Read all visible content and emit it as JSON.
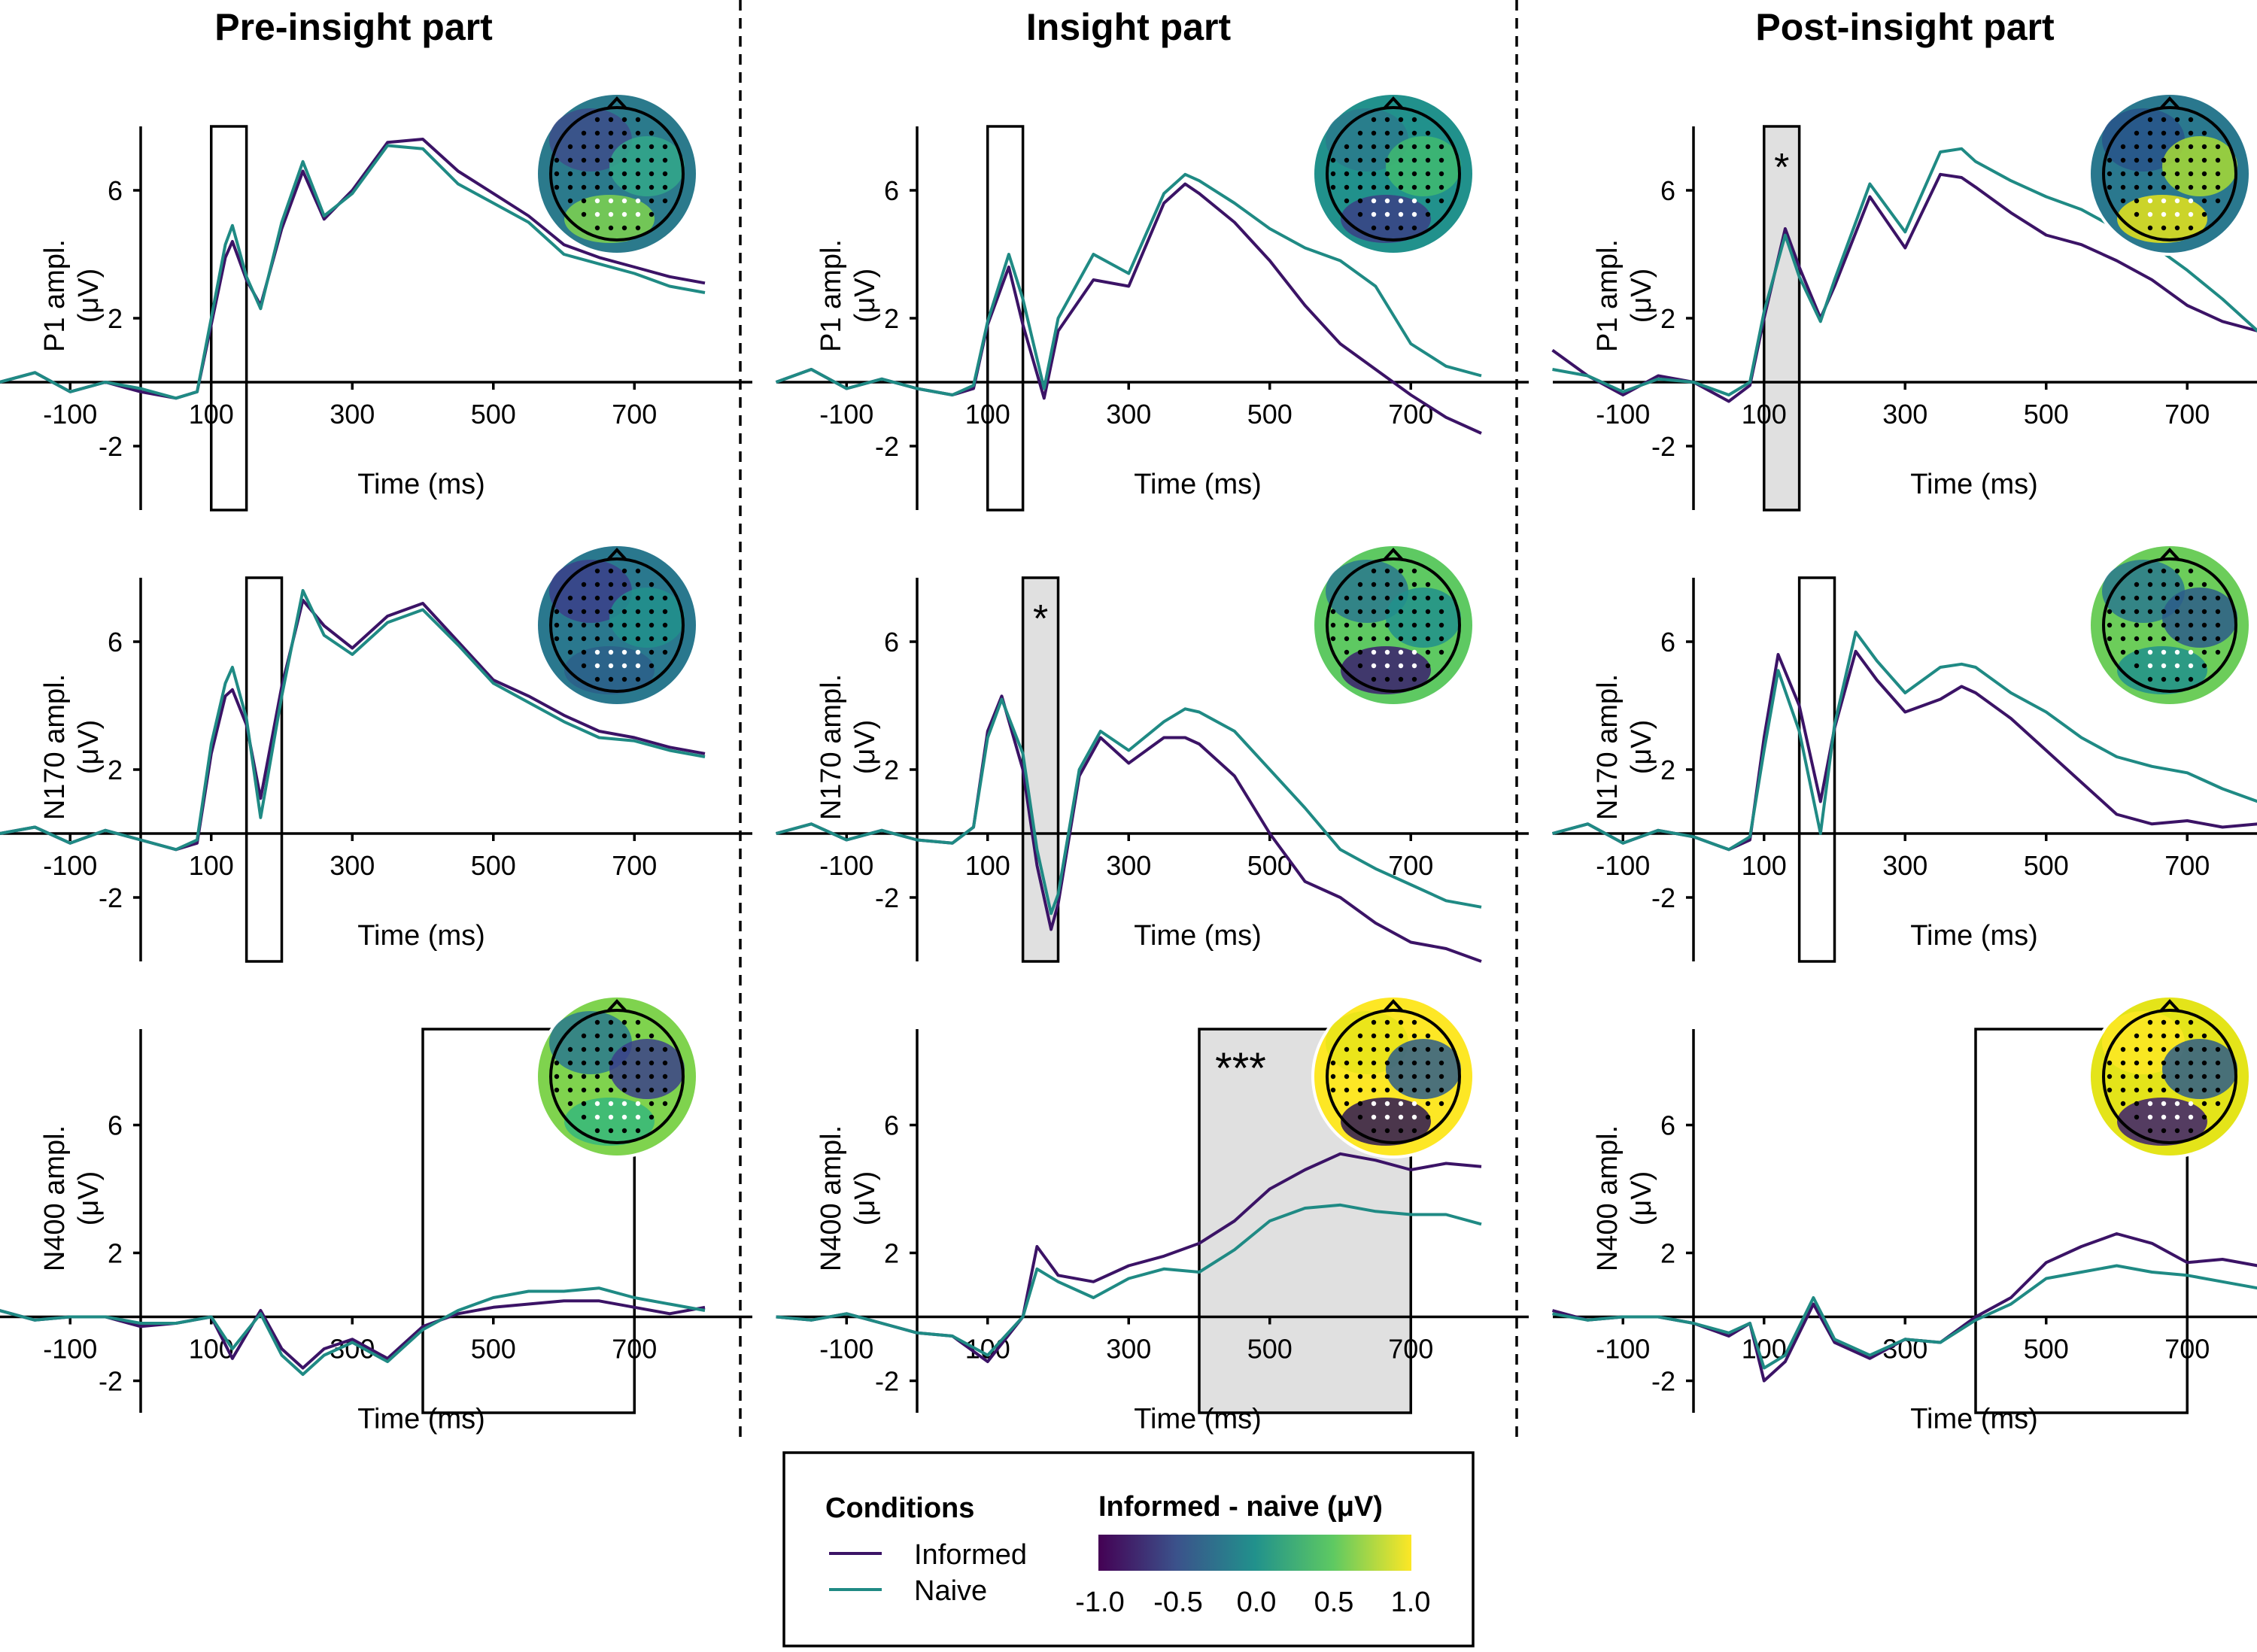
{
  "columns": [
    "Pre-insight part",
    "Insight part",
    "Post-insight part"
  ],
  "row_ylabels": [
    [
      "P1 ampl.",
      "(μV)"
    ],
    [
      "N170 ampl.",
      "(μV)"
    ],
    [
      "N400 ampl.",
      "(μV)"
    ]
  ],
  "x_axis_label": "Time (ms)",
  "x_ticks": [
    -100,
    100,
    300,
    500,
    700
  ],
  "y_ticks": [
    -2,
    2,
    6
  ],
  "colors": {
    "informed": "#3b1366",
    "naive": "#1f8a84",
    "shade": "#e0e0e0"
  },
  "legend": {
    "conditions_title": "Conditions",
    "conditions": [
      "Informed",
      "Naive"
    ],
    "colorbar_title": "Informed - naive (μV)",
    "colorbar_ticks": [
      "-1.0",
      "-0.5",
      "0.0",
      "0.5",
      "1.0"
    ]
  },
  "chart_data": [
    {
      "type": "line",
      "panel": "Pre-insight part / P1",
      "xlim": [
        -200,
        800
      ],
      "ylim": [
        -4,
        8
      ],
      "window": [
        100,
        150
      ],
      "shaded": false,
      "significance": "",
      "x": [
        -200,
        -150,
        -100,
        -50,
        0,
        50,
        80,
        100,
        120,
        130,
        150,
        170,
        200,
        230,
        260,
        300,
        350,
        400,
        450,
        500,
        550,
        600,
        650,
        700,
        750,
        800
      ],
      "series": [
        {
          "name": "Informed",
          "values": [
            0,
            0.3,
            -0.3,
            0,
            -0.3,
            -0.5,
            -0.3,
            1.8,
            3.9,
            4.4,
            3.2,
            2.4,
            4.8,
            6.6,
            5.1,
            6.0,
            7.5,
            7.6,
            6.6,
            5.9,
            5.2,
            4.3,
            3.9,
            3.6,
            3.3,
            3.1
          ]
        },
        {
          "name": "Naive",
          "values": [
            0,
            0.3,
            -0.3,
            0,
            -0.2,
            -0.5,
            -0.3,
            2.0,
            4.3,
            4.9,
            3.3,
            2.3,
            5.0,
            6.9,
            5.2,
            5.9,
            7.4,
            7.3,
            6.2,
            5.6,
            5.0,
            4.0,
            3.7,
            3.4,
            3.0,
            2.8
          ]
        }
      ],
      "topography": {
        "colors": [
          "#3d4e8a",
          "#2b7a8c",
          "#33a88a",
          "#7fd34e"
        ]
      }
    },
    {
      "type": "line",
      "panel": "Insight part / P1",
      "xlim": [
        -200,
        800
      ],
      "ylim": [
        -4,
        8
      ],
      "window": [
        100,
        150
      ],
      "shaded": false,
      "significance": "",
      "x": [
        -200,
        -150,
        -100,
        -50,
        0,
        50,
        80,
        100,
        130,
        150,
        180,
        200,
        250,
        300,
        350,
        380,
        400,
        450,
        500,
        550,
        600,
        650,
        700,
        750,
        800
      ],
      "series": [
        {
          "name": "Informed",
          "values": [
            0,
            0.4,
            -0.2,
            0.1,
            -0.2,
            -0.4,
            -0.2,
            1.8,
            3.6,
            1.8,
            -0.5,
            1.6,
            3.2,
            3.0,
            5.6,
            6.2,
            5.9,
            5.0,
            3.8,
            2.4,
            1.2,
            0.4,
            -0.4,
            -1.1,
            -1.6
          ]
        },
        {
          "name": "Naive",
          "values": [
            0,
            0.4,
            -0.2,
            0.1,
            -0.2,
            -0.4,
            -0.1,
            1.9,
            4.0,
            2.6,
            -0.2,
            2.0,
            4.0,
            3.4,
            5.9,
            6.5,
            6.3,
            5.6,
            4.8,
            4.2,
            3.8,
            3.0,
            1.2,
            0.5,
            0.2
          ]
        }
      ],
      "topography": {
        "colors": [
          "#2a7a8c",
          "#21918c",
          "#3fba70",
          "#3a3f85"
        ]
      }
    },
    {
      "type": "line",
      "panel": "Post-insight part / P1",
      "xlim": [
        -200,
        800
      ],
      "ylim": [
        -4,
        8
      ],
      "window": [
        100,
        150
      ],
      "shaded": true,
      "significance": "*",
      "x": [
        -200,
        -150,
        -100,
        -50,
        0,
        50,
        80,
        100,
        130,
        150,
        180,
        200,
        250,
        300,
        350,
        380,
        400,
        450,
        500,
        550,
        600,
        650,
        700,
        750,
        800
      ],
      "series": [
        {
          "name": "Informed",
          "values": [
            1.0,
            0.2,
            -0.4,
            0.2,
            0.0,
            -0.6,
            -0.1,
            2.0,
            4.8,
            3.6,
            2.0,
            3.0,
            5.8,
            4.2,
            6.5,
            6.4,
            6.1,
            5.3,
            4.6,
            4.3,
            3.8,
            3.2,
            2.4,
            1.9,
            1.6
          ]
        },
        {
          "name": "Naive",
          "values": [
            0.4,
            0.2,
            -0.3,
            0.1,
            0.0,
            -0.4,
            0.0,
            2.2,
            4.6,
            3.3,
            1.9,
            3.2,
            6.2,
            4.7,
            7.2,
            7.3,
            6.9,
            6.3,
            5.8,
            5.4,
            4.8,
            4.3,
            3.5,
            2.6,
            1.6
          ]
        }
      ],
      "topography": {
        "colors": [
          "#28548a",
          "#2a788e",
          "#a8db34",
          "#e7e419"
        ]
      }
    },
    {
      "type": "line",
      "panel": "Pre-insight part / N170",
      "xlim": [
        -200,
        800
      ],
      "ylim": [
        -4,
        8
      ],
      "window": [
        150,
        200
      ],
      "shaded": false,
      "significance": "",
      "x": [
        -200,
        -150,
        -100,
        -50,
        0,
        50,
        80,
        100,
        120,
        130,
        150,
        170,
        200,
        230,
        260,
        300,
        350,
        400,
        450,
        500,
        550,
        600,
        650,
        700,
        750,
        800
      ],
      "series": [
        {
          "name": "Informed",
          "values": [
            0,
            0.2,
            -0.3,
            0.1,
            -0.2,
            -0.5,
            -0.3,
            2.5,
            4.3,
            4.5,
            3.4,
            1.1,
            4.6,
            7.3,
            6.5,
            5.8,
            6.8,
            7.2,
            6.0,
            4.8,
            4.3,
            3.7,
            3.2,
            3.0,
            2.7,
            2.5
          ]
        },
        {
          "name": "Naive",
          "values": [
            0,
            0.2,
            -0.3,
            0.1,
            -0.2,
            -0.5,
            -0.2,
            2.8,
            4.7,
            5.2,
            3.6,
            0.5,
            4.3,
            7.6,
            6.2,
            5.6,
            6.6,
            7.0,
            5.9,
            4.7,
            4.1,
            3.5,
            3.0,
            2.9,
            2.6,
            2.4
          ]
        }
      ],
      "topography": {
        "colors": [
          "#3b3f8a",
          "#2a788e",
          "#21918c",
          "#2c5f8a"
        ]
      }
    },
    {
      "type": "line",
      "panel": "Insight part / N170",
      "xlim": [
        -200,
        800
      ],
      "ylim": [
        -4,
        8
      ],
      "window": [
        150,
        200
      ],
      "shaded": true,
      "significance": "*",
      "x": [
        -200,
        -150,
        -100,
        -50,
        0,
        50,
        80,
        100,
        120,
        150,
        170,
        190,
        200,
        230,
        260,
        300,
        350,
        380,
        400,
        450,
        500,
        550,
        600,
        650,
        700,
        750,
        800
      ],
      "series": [
        {
          "name": "Informed",
          "values": [
            0,
            0.3,
            -0.2,
            0.1,
            -0.2,
            -0.3,
            0.2,
            3.2,
            4.3,
            2.0,
            -1.0,
            -3.0,
            -2.2,
            1.8,
            3.0,
            2.2,
            3.0,
            3.0,
            2.8,
            1.8,
            0,
            -1.5,
            -2.0,
            -2.8,
            -3.4,
            -3.6,
            -4.0
          ]
        },
        {
          "name": "Naive",
          "values": [
            0,
            0.3,
            -0.2,
            0.1,
            -0.2,
            -0.3,
            0.2,
            3.0,
            4.2,
            2.5,
            -0.5,
            -2.5,
            -1.9,
            2.0,
            3.2,
            2.6,
            3.5,
            3.9,
            3.8,
            3.2,
            2.0,
            0.8,
            -0.5,
            -1.1,
            -1.6,
            -2.1,
            -2.3
          ]
        }
      ],
      "topography": {
        "colors": [
          "#2a788e",
          "#5ec962",
          "#21918c",
          "#3b1f6e"
        ]
      }
    },
    {
      "type": "line",
      "panel": "Post-insight part / N170",
      "xlim": [
        -200,
        800
      ],
      "ylim": [
        -4,
        8
      ],
      "window": [
        150,
        200
      ],
      "shaded": false,
      "significance": "",
      "x": [
        -200,
        -150,
        -100,
        -50,
        0,
        50,
        80,
        100,
        120,
        150,
        180,
        200,
        230,
        260,
        300,
        350,
        380,
        400,
        450,
        500,
        550,
        600,
        650,
        700,
        750,
        800
      ],
      "series": [
        {
          "name": "Informed",
          "values": [
            0,
            0.3,
            -0.3,
            0.1,
            -0.1,
            -0.5,
            -0.2,
            3.0,
            5.6,
            4.0,
            1.0,
            3.3,
            5.7,
            4.8,
            3.8,
            4.2,
            4.6,
            4.4,
            3.6,
            2.6,
            1.6,
            0.6,
            0.3,
            0.4,
            0.2,
            0.3
          ]
        },
        {
          "name": "Naive",
          "values": [
            0,
            0.3,
            -0.3,
            0.1,
            -0.1,
            -0.5,
            -0.1,
            2.6,
            5.1,
            3.2,
            0,
            3.4,
            6.3,
            5.4,
            4.4,
            5.2,
            5.3,
            5.2,
            4.4,
            3.8,
            3.0,
            2.4,
            2.1,
            1.9,
            1.4,
            1.0
          ]
        }
      ],
      "topography": {
        "colors": [
          "#2a788e",
          "#6ccd5a",
          "#2d5c8a",
          "#21918c"
        ]
      }
    },
    {
      "type": "line",
      "panel": "Pre-insight part / N400",
      "xlim": [
        -200,
        800
      ],
      "ylim": [
        -3,
        9
      ],
      "window": [
        400,
        700
      ],
      "shaded": false,
      "significance": "",
      "x": [
        -200,
        -150,
        -100,
        -50,
        0,
        50,
        100,
        130,
        170,
        200,
        230,
        260,
        300,
        350,
        400,
        450,
        500,
        550,
        600,
        650,
        700,
        750,
        800
      ],
      "series": [
        {
          "name": "Informed",
          "values": [
            0.2,
            -0.1,
            0,
            0,
            -0.3,
            -0.2,
            0,
            -1.3,
            0.2,
            -1.0,
            -1.6,
            -1.0,
            -0.7,
            -1.3,
            -0.3,
            0.1,
            0.3,
            0.4,
            0.5,
            0.5,
            0.3,
            0.1,
            0.3
          ]
        },
        {
          "name": "Naive",
          "values": [
            0.2,
            -0.1,
            0,
            0,
            -0.2,
            -0.2,
            0,
            -1.0,
            0.1,
            -1.2,
            -1.8,
            -1.2,
            -0.8,
            -1.4,
            -0.4,
            0.2,
            0.6,
            0.8,
            0.8,
            0.9,
            0.6,
            0.4,
            0.2
          ]
        }
      ],
      "topography": {
        "colors": [
          "#2a788e",
          "#7fd34e",
          "#3b3f8a",
          "#36b77b"
        ]
      }
    },
    {
      "type": "line",
      "panel": "Insight part / N400",
      "xlim": [
        -200,
        800
      ],
      "ylim": [
        -3,
        9
      ],
      "window": [
        400,
        700
      ],
      "shaded": true,
      "significance": "***",
      "x": [
        -200,
        -150,
        -100,
        -50,
        0,
        50,
        100,
        150,
        170,
        200,
        250,
        300,
        350,
        400,
        450,
        500,
        550,
        600,
        650,
        700,
        750,
        800
      ],
      "series": [
        {
          "name": "Informed",
          "values": [
            0,
            -0.1,
            0.1,
            -0.2,
            -0.5,
            -0.6,
            -1.4,
            0,
            2.2,
            1.3,
            1.1,
            1.6,
            1.9,
            2.3,
            3.0,
            4.0,
            4.6,
            5.1,
            4.9,
            4.6,
            4.8,
            4.7
          ]
        },
        {
          "name": "Naive",
          "values": [
            0,
            -0.1,
            0.1,
            -0.2,
            -0.5,
            -0.6,
            -1.2,
            0,
            1.5,
            1.1,
            0.6,
            1.2,
            1.5,
            1.4,
            2.1,
            3.0,
            3.4,
            3.5,
            3.3,
            3.2,
            3.2,
            2.9
          ]
        }
      ],
      "topography": {
        "colors": [
          "#e7e419",
          "#fde725",
          "#2d5c8a",
          "#2b1653"
        ]
      }
    },
    {
      "type": "line",
      "panel": "Post-insight part / N400",
      "xlim": [
        -200,
        800
      ],
      "ylim": [
        -3,
        9
      ],
      "window": [
        400,
        700
      ],
      "shaded": false,
      "significance": "",
      "x": [
        -200,
        -150,
        -100,
        -50,
        0,
        50,
        80,
        100,
        130,
        170,
        200,
        250,
        300,
        350,
        400,
        450,
        500,
        550,
        600,
        650,
        700,
        750,
        800
      ],
      "series": [
        {
          "name": "Informed",
          "values": [
            0.2,
            -0.1,
            0,
            0,
            -0.2,
            -0.6,
            -0.2,
            -2.0,
            -1.4,
            0.4,
            -0.8,
            -1.3,
            -0.7,
            -0.8,
            0,
            0.6,
            1.7,
            2.2,
            2.6,
            2.3,
            1.7,
            1.8,
            1.6
          ]
        },
        {
          "name": "Naive",
          "values": [
            0.1,
            -0.1,
            0,
            0,
            -0.2,
            -0.5,
            -0.2,
            -1.6,
            -1.2,
            0.6,
            -0.7,
            -1.2,
            -0.7,
            -0.8,
            -0.1,
            0.4,
            1.2,
            1.4,
            1.6,
            1.4,
            1.3,
            1.1,
            0.9
          ]
        }
      ],
      "topography": {
        "colors": [
          "#fde725",
          "#e4e419",
          "#2d5c8a",
          "#3b1f6e"
        ]
      }
    }
  ]
}
